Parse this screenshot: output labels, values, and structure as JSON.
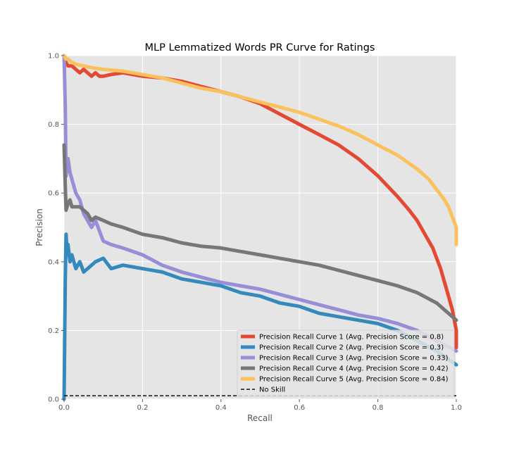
{
  "chart_data": {
    "type": "line",
    "title": "MLP Lemmatized Words PR Curve for Ratings",
    "xlabel": "Recall",
    "ylabel": "Precision",
    "xlim": [
      0,
      1
    ],
    "ylim": [
      0,
      1.0
    ],
    "xticks": [
      "0.0",
      "0.2",
      "0.4",
      "0.6",
      "0.8",
      "1.0"
    ],
    "yticks": [
      "0.0",
      "0.2",
      "0.4",
      "0.6",
      "0.8",
      "1.0"
    ],
    "grid": true,
    "legend_position": "lower-right",
    "series": [
      {
        "name": "Precision Recall Curve 1 (Avg. Precision Score = 0.8)",
        "color": "#E24A33",
        "x": [
          0,
          0.005,
          0.01,
          0.02,
          0.03,
          0.04,
          0.05,
          0.06,
          0.07,
          0.08,
          0.09,
          0.1,
          0.12,
          0.15,
          0.2,
          0.25,
          0.3,
          0.35,
          0.4,
          0.45,
          0.5,
          0.55,
          0.6,
          0.65,
          0.7,
          0.75,
          0.8,
          0.85,
          0.88,
          0.9,
          0.92,
          0.94,
          0.96,
          0.97,
          0.98,
          0.99,
          1.0,
          1.0
        ],
        "y": [
          1.0,
          0.98,
          0.97,
          0.97,
          0.96,
          0.95,
          0.96,
          0.95,
          0.94,
          0.95,
          0.94,
          0.94,
          0.945,
          0.95,
          0.94,
          0.935,
          0.925,
          0.91,
          0.895,
          0.88,
          0.86,
          0.83,
          0.8,
          0.77,
          0.74,
          0.7,
          0.65,
          0.59,
          0.55,
          0.52,
          0.48,
          0.44,
          0.38,
          0.34,
          0.3,
          0.26,
          0.2,
          0.15
        ]
      },
      {
        "name": "Precision Recall Curve 2 (Avg. Precision Score = 0.3)",
        "color": "#348ABD",
        "x": [
          0,
          0.003,
          0.005,
          0.008,
          0.01,
          0.015,
          0.02,
          0.03,
          0.04,
          0.05,
          0.06,
          0.08,
          0.1,
          0.12,
          0.15,
          0.2,
          0.25,
          0.3,
          0.35,
          0.4,
          0.45,
          0.5,
          0.55,
          0.6,
          0.65,
          0.7,
          0.75,
          0.8,
          0.85,
          0.9,
          0.95,
          1.0
        ],
        "y": [
          0.0,
          0.35,
          0.48,
          0.42,
          0.45,
          0.4,
          0.42,
          0.38,
          0.4,
          0.37,
          0.38,
          0.4,
          0.41,
          0.38,
          0.39,
          0.38,
          0.37,
          0.35,
          0.34,
          0.33,
          0.31,
          0.3,
          0.28,
          0.27,
          0.25,
          0.24,
          0.23,
          0.22,
          0.2,
          0.17,
          0.14,
          0.1
        ]
      },
      {
        "name": "Precision Recall Curve 3 (Avg. Precision Score = 0.33)",
        "color": "#988ED5",
        "x": [
          0,
          0.003,
          0.005,
          0.01,
          0.015,
          0.02,
          0.03,
          0.04,
          0.05,
          0.06,
          0.07,
          0.08,
          0.1,
          0.12,
          0.15,
          0.2,
          0.25,
          0.3,
          0.35,
          0.4,
          0.45,
          0.5,
          0.55,
          0.6,
          0.65,
          0.7,
          0.75,
          0.8,
          0.85,
          0.9,
          0.95,
          1.0
        ],
        "y": [
          1.0,
          0.85,
          0.65,
          0.7,
          0.66,
          0.64,
          0.6,
          0.58,
          0.54,
          0.52,
          0.5,
          0.52,
          0.46,
          0.45,
          0.44,
          0.42,
          0.39,
          0.37,
          0.355,
          0.34,
          0.33,
          0.32,
          0.305,
          0.29,
          0.275,
          0.26,
          0.245,
          0.235,
          0.22,
          0.2,
          0.17,
          0.14
        ]
      },
      {
        "name": "Precision Recall Curve 4 (Avg. Precision Score = 0.42)",
        "color": "#777777",
        "x": [
          0,
          0.003,
          0.005,
          0.01,
          0.015,
          0.02,
          0.03,
          0.04,
          0.05,
          0.06,
          0.07,
          0.08,
          0.1,
          0.12,
          0.15,
          0.2,
          0.25,
          0.3,
          0.35,
          0.4,
          0.45,
          0.5,
          0.55,
          0.6,
          0.65,
          0.7,
          0.75,
          0.8,
          0.85,
          0.9,
          0.95,
          1.0
        ],
        "y": [
          0.74,
          0.62,
          0.55,
          0.57,
          0.58,
          0.56,
          0.56,
          0.56,
          0.55,
          0.54,
          0.52,
          0.53,
          0.52,
          0.51,
          0.5,
          0.48,
          0.47,
          0.455,
          0.445,
          0.44,
          0.43,
          0.42,
          0.41,
          0.4,
          0.39,
          0.375,
          0.36,
          0.345,
          0.33,
          0.31,
          0.28,
          0.23
        ]
      },
      {
        "name": "Precision Recall Curve 5 (Avg. Precision Score = 0.84)",
        "color": "#FBC15E",
        "x": [
          0,
          0.005,
          0.01,
          0.02,
          0.03,
          0.05,
          0.07,
          0.1,
          0.15,
          0.2,
          0.25,
          0.3,
          0.35,
          0.4,
          0.45,
          0.5,
          0.55,
          0.6,
          0.65,
          0.7,
          0.75,
          0.8,
          0.85,
          0.9,
          0.93,
          0.95,
          0.97,
          0.98,
          0.99,
          1.0,
          1.0
        ],
        "y": [
          1.0,
          0.99,
          0.99,
          0.98,
          0.975,
          0.97,
          0.965,
          0.96,
          0.955,
          0.945,
          0.935,
          0.92,
          0.905,
          0.895,
          0.88,
          0.865,
          0.85,
          0.835,
          0.815,
          0.795,
          0.77,
          0.74,
          0.71,
          0.67,
          0.64,
          0.61,
          0.58,
          0.56,
          0.53,
          0.5,
          0.45
        ]
      },
      {
        "name": "No Skill",
        "color": "#111111",
        "dashed": true,
        "x": [
          0,
          1
        ],
        "y": [
          0.01,
          0.01
        ]
      }
    ]
  }
}
